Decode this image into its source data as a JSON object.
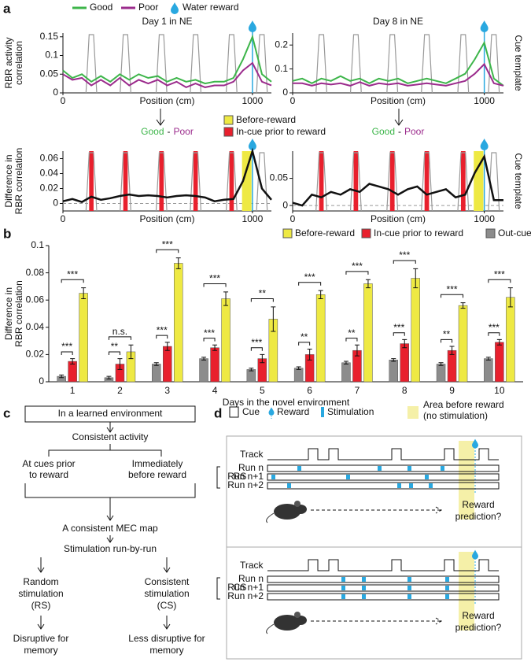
{
  "panel_labels": [
    "a",
    "b",
    "c",
    "d"
  ],
  "chart_data": [
    {
      "type": "line",
      "title": "Day 1 in NE",
      "xlabel": "Position (cm)",
      "ylabel": [
        "RBR activity",
        "correlation"
      ],
      "xlim": [
        0,
        1100
      ],
      "xticks": [
        0,
        1000
      ],
      "ylim": [
        0,
        0.16
      ],
      "yticks": [
        0,
        0.05,
        0.1,
        0.15
      ],
      "x": [
        0,
        50,
        100,
        150,
        200,
        250,
        300,
        350,
        400,
        450,
        500,
        550,
        600,
        650,
        700,
        750,
        800,
        850,
        900,
        950,
        1000,
        1050,
        1100
      ],
      "series": [
        {
          "name": "Good",
          "color": "#3db54a",
          "values": [
            0.06,
            0.04,
            0.05,
            0.03,
            0.045,
            0.03,
            0.05,
            0.035,
            0.05,
            0.04,
            0.045,
            0.03,
            0.04,
            0.03,
            0.035,
            0.025,
            0.03,
            0.03,
            0.04,
            0.09,
            0.15,
            0.05,
            0.03
          ]
        },
        {
          "name": "Poor",
          "color": "#9b2b8c",
          "values": [
            0.05,
            0.035,
            0.04,
            0.02,
            0.035,
            0.02,
            0.04,
            0.02,
            0.035,
            0.025,
            0.035,
            0.02,
            0.03,
            0.015,
            0.025,
            0.015,
            0.02,
            0.02,
            0.03,
            0.06,
            0.08,
            0.03,
            0.02
          ]
        }
      ],
      "cues": [
        [
          130,
          170
        ],
        [
          310,
          350
        ],
        [
          500,
          540
        ],
        [
          680,
          720
        ],
        [
          870,
          910
        ],
        [
          1030,
          1070
        ]
      ],
      "reward": 1000,
      "reward_label": "Water reward",
      "reward_color": "#29a8e0"
    },
    {
      "type": "line",
      "title": "Day 8 in NE",
      "xlabel": "Position (cm)",
      "y2label": "Cue template",
      "xlim": [
        0,
        1100
      ],
      "xticks": [
        0,
        1000
      ],
      "ylim": [
        0,
        0.25
      ],
      "yticks": [
        0,
        0.1,
        0.2
      ],
      "x": [
        0,
        50,
        100,
        150,
        200,
        250,
        300,
        350,
        400,
        450,
        500,
        550,
        600,
        650,
        700,
        750,
        800,
        850,
        900,
        950,
        1000,
        1050,
        1100
      ],
      "series": [
        {
          "name": "Good",
          "color": "#3db54a",
          "values": [
            0.05,
            0.06,
            0.04,
            0.06,
            0.05,
            0.07,
            0.05,
            0.06,
            0.04,
            0.06,
            0.05,
            0.06,
            0.04,
            0.05,
            0.06,
            0.05,
            0.04,
            0.06,
            0.08,
            0.14,
            0.21,
            0.06,
            0.03
          ]
        },
        {
          "name": "Poor",
          "color": "#9b2b8c",
          "values": [
            0.04,
            0.04,
            0.03,
            0.04,
            0.035,
            0.04,
            0.03,
            0.045,
            0.03,
            0.04,
            0.035,
            0.04,
            0.03,
            0.035,
            0.04,
            0.035,
            0.03,
            0.04,
            0.05,
            0.08,
            0.12,
            0.04,
            0.03
          ]
        }
      ],
      "cues": [
        [
          130,
          170
        ],
        [
          310,
          350
        ],
        [
          500,
          540
        ],
        [
          680,
          720
        ],
        [
          870,
          910
        ],
        [
          1030,
          1070
        ]
      ],
      "reward": 1000,
      "reward_color": "#29a8e0"
    },
    {
      "type": "line",
      "title_parts": [
        "Good",
        "-",
        "Poor"
      ],
      "title_colors": [
        "#3db54a",
        "#111111",
        "#9b2b8c"
      ],
      "xlabel": "Position (cm)",
      "ylabel": [
        "Difference in",
        "RBR correlation"
      ],
      "xlim": [
        0,
        1100
      ],
      "xticks": [
        0,
        1000
      ],
      "ylim": [
        -0.01,
        0.07
      ],
      "yticks": [
        0,
        0.02,
        0.04,
        0.06
      ],
      "zero_line": true,
      "x": [
        0,
        50,
        100,
        150,
        200,
        250,
        300,
        350,
        400,
        450,
        500,
        550,
        600,
        650,
        700,
        750,
        800,
        850,
        900,
        950,
        1000,
        1050,
        1100
      ],
      "series": [
        {
          "color": "#111111",
          "values": [
            0.003,
            0.006,
            0.002,
            0.009,
            0.005,
            0.007,
            0.01,
            0.012,
            0.01,
            0.011,
            0.01,
            0.008,
            0.01,
            0.011,
            0.01,
            0.008,
            0.003,
            0.005,
            0.006,
            0.03,
            0.07,
            0.02,
            0.005
          ]
        }
      ],
      "cues": [
        [
          130,
          170
        ],
        [
          310,
          350
        ],
        [
          500,
          540
        ],
        [
          680,
          720
        ],
        [
          870,
          910
        ],
        [
          1030,
          1070
        ]
      ],
      "reward": 1000,
      "reward_color": "#29a8e0",
      "before_reward": [
        945,
        995
      ],
      "legend": [
        {
          "name": "Before-reward",
          "color": "#eee943"
        },
        {
          "name": "In-cue prior to reward",
          "color": "#e8202d"
        }
      ]
    },
    {
      "type": "line",
      "title_parts": [
        "Good",
        "-",
        "Poor"
      ],
      "title_colors": [
        "#3db54a",
        "#111111",
        "#9b2b8c"
      ],
      "xlabel": "Position (cm)",
      "y2label": "Cue template",
      "xlim": [
        0,
        1100
      ],
      "xticks": [
        0,
        1000
      ],
      "ylim": [
        -0.01,
        0.1
      ],
      "yticks": [
        0,
        0.05
      ],
      "zero_line": true,
      "x": [
        0,
        50,
        100,
        150,
        200,
        250,
        300,
        350,
        400,
        450,
        500,
        550,
        600,
        650,
        700,
        750,
        800,
        850,
        900,
        950,
        1000,
        1050,
        1100
      ],
      "series": [
        {
          "color": "#111111",
          "values": [
            0.005,
            0.0,
            0.02,
            0.015,
            0.025,
            0.02,
            0.03,
            0.025,
            0.04,
            0.035,
            0.03,
            0.02,
            0.03,
            0.035,
            0.02,
            0.025,
            0.03,
            0.015,
            0.02,
            0.06,
            0.09,
            0.01,
            0.01
          ]
        }
      ],
      "cues": [
        [
          130,
          170
        ],
        [
          310,
          350
        ],
        [
          500,
          540
        ],
        [
          680,
          720
        ],
        [
          870,
          910
        ],
        [
          1030,
          1070
        ]
      ],
      "reward": 1000,
      "reward_color": "#29a8e0",
      "before_reward": [
        945,
        995
      ],
      "legend": [
        {
          "name": "Before-reward",
          "color": "#eee943"
        },
        {
          "name": "In-cue prior to reward",
          "color": "#e8202d"
        }
      ]
    },
    {
      "type": "bar",
      "xlabel": "Days in the novel environment",
      "ylabel": [
        "Difference in",
        "RBR correlation"
      ],
      "categories": [
        "1",
        "2",
        "3",
        "4",
        "5",
        "6",
        "7",
        "8",
        "9",
        "10"
      ],
      "ylim": [
        0,
        0.1
      ],
      "yticks": [
        0,
        0.02,
        0.04,
        0.06,
        0.08,
        0.1
      ],
      "series": [
        {
          "name": "Before-reward",
          "color": "#eee943",
          "values": [
            0.065,
            0.022,
            0.087,
            0.061,
            0.046,
            0.064,
            0.072,
            0.076,
            0.056,
            0.062
          ],
          "errors": [
            0.004,
            0.005,
            0.004,
            0.005,
            0.009,
            0.003,
            0.003,
            0.007,
            0.002,
            0.007
          ]
        },
        {
          "name": "In-cue prior to reward",
          "color": "#e8202d",
          "values": [
            0.015,
            0.013,
            0.026,
            0.025,
            0.017,
            0.02,
            0.023,
            0.028,
            0.023,
            0.029
          ],
          "errors": [
            0.002,
            0.004,
            0.003,
            0.002,
            0.003,
            0.004,
            0.004,
            0.003,
            0.003,
            0.002
          ]
        },
        {
          "name": "Out-cue",
          "color": "#8c8c8c",
          "values": [
            0.004,
            0.003,
            0.013,
            0.017,
            0.009,
            0.01,
            0.014,
            0.016,
            0.013,
            0.017
          ],
          "errors": [
            0.001,
            0.001,
            0.001,
            0.001,
            0.001,
            0.001,
            0.001,
            0.001,
            0.001,
            0.001
          ]
        }
      ],
      "significance": [
        [
          "***",
          "***"
        ],
        [
          "**",
          "n.s."
        ],
        [
          "***",
          "***"
        ],
        [
          "***",
          "***"
        ],
        [
          "***",
          "**"
        ],
        [
          "**",
          "***"
        ],
        [
          "**",
          "***"
        ],
        [
          "***",
          "***"
        ],
        [
          "**",
          "***"
        ],
        [
          "***",
          "***"
        ]
      ],
      "significance_color": "#e8203a"
    }
  ],
  "flowchart": {
    "nodes": [
      {
        "lines": [
          "In a learned environment"
        ]
      },
      {
        "lines": [
          "Consistent activity"
        ]
      },
      {
        "lines": [
          "At cues prior",
          "to reward"
        ]
      },
      {
        "lines": [
          "Immediately",
          "before reward"
        ]
      },
      {
        "lines": [
          "A consistent MEC map"
        ]
      },
      {
        "lines": [
          "Stimulation run-by-run"
        ]
      },
      {
        "lines": [
          "Random",
          "stimulation",
          "(RS)"
        ]
      },
      {
        "lines": [
          "Consistent",
          "stimulation",
          "(CS)"
        ]
      },
      {
        "lines": [
          "Disruptive for",
          "memory"
        ]
      },
      {
        "lines": [
          "Less disruptive for",
          "memory"
        ]
      }
    ]
  },
  "schematic": {
    "legend": {
      "cue": "Cue",
      "reward": "Reward",
      "stimulation": "Stimulation",
      "area": [
        "Area before reward",
        "(no stimulation)"
      ]
    },
    "groups": [
      {
        "label": "RS",
        "track": "Track",
        "runs": [
          "Run n",
          "Run n+1",
          "Run n+2"
        ],
        "outcome": [
          "Reward",
          "prediction?"
        ]
      },
      {
        "label": "CS",
        "track": "Track",
        "runs": [
          "Run n",
          "Run n+1",
          "Run n+2"
        ],
        "outcome": [
          "Reward",
          "prediction?"
        ]
      }
    ]
  }
}
